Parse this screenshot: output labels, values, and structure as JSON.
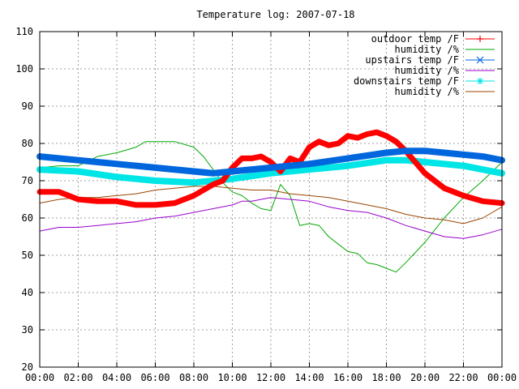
{
  "chart_data": {
    "type": "line",
    "title": "Temperature log: 2007-07-18",
    "xlabel": "",
    "ylabel": "",
    "ylim": [
      20,
      110
    ],
    "xlim": [
      0,
      24
    ],
    "grid": true,
    "legend_position": "top-right",
    "y_ticks": [
      "20",
      "30",
      "40",
      "50",
      "60",
      "70",
      "80",
      "90",
      "100",
      "110"
    ],
    "x_ticks": [
      "00:00",
      "02:00",
      "04:00",
      "06:00",
      "08:00",
      "10:00",
      "12:00",
      "14:00",
      "16:00",
      "18:00",
      "20:00",
      "22:00",
      "00:00"
    ],
    "series": [
      {
        "name": "outdoor temp /F",
        "color": "#ff0000",
        "marker": "plus",
        "x": [
          0,
          1,
          1.5,
          2,
          3,
          4,
          5,
          6,
          7,
          8,
          8.5,
          9,
          9.5,
          10,
          10.5,
          11,
          11.5,
          12,
          12.5,
          13,
          13.5,
          14,
          14.5,
          15,
          15.5,
          16,
          16.5,
          17,
          17.5,
          18,
          18.5,
          19,
          19.5,
          20,
          21,
          22,
          23,
          24
        ],
        "y": [
          67,
          67,
          66,
          65,
          64.5,
          64.5,
          63.5,
          63.5,
          64,
          66,
          67.5,
          69,
          70,
          73.5,
          76,
          76,
          76.5,
          75,
          72.5,
          76,
          75,
          79,
          80.5,
          79.5,
          80,
          82,
          81.5,
          82.5,
          83,
          82,
          80.5,
          78,
          75,
          72,
          68,
          66,
          64.5,
          64
        ]
      },
      {
        "name": "humidity /%",
        "color": "#00aa00",
        "marker": "none",
        "x": [
          0,
          1,
          2,
          3,
          4,
          5,
          5.5,
          6,
          7,
          8,
          8.5,
          9,
          9.5,
          10,
          10.5,
          11,
          11.5,
          12,
          12.5,
          13,
          13.5,
          14,
          14.5,
          15,
          15.5,
          16,
          16.5,
          17,
          17.5,
          18,
          18.5,
          19,
          20,
          21,
          22,
          23,
          24
        ],
        "y": [
          73.5,
          74,
          74,
          76.5,
          77.5,
          79,
          80.5,
          80.5,
          80.5,
          79,
          76.5,
          73,
          69.5,
          67,
          66,
          64,
          62.5,
          62,
          69,
          66,
          58,
          58.5,
          58,
          55,
          53,
          51,
          50.5,
          48,
          47.5,
          46.5,
          45.5,
          48,
          53.5,
          60,
          65.5,
          70,
          75
        ]
      },
      {
        "name": "upstairs temp /F",
        "color": "#0066dd",
        "marker": "cross",
        "x": [
          0,
          2,
          4,
          6,
          8,
          9,
          10,
          12,
          14,
          16,
          18,
          19,
          20,
          21,
          22,
          23,
          24
        ],
        "y": [
          76.5,
          75.5,
          74.5,
          73.5,
          72.5,
          72,
          72.5,
          73.5,
          74.5,
          76,
          77.5,
          78,
          78,
          77.5,
          77,
          76.5,
          75.5
        ]
      },
      {
        "name": "humidity /%",
        "color": "#9900cc",
        "marker": "none",
        "x": [
          0,
          1,
          2,
          3,
          4,
          5,
          6,
          7,
          8,
          9,
          10,
          10.5,
          11,
          12,
          13,
          14,
          15,
          16,
          17,
          18,
          19,
          20,
          21,
          22,
          23,
          24
        ],
        "y": [
          56.5,
          57.5,
          57.5,
          58,
          58.5,
          59,
          60,
          60.5,
          61.5,
          62.5,
          63.5,
          64.5,
          64.5,
          65.5,
          65,
          64.5,
          63,
          62,
          61.5,
          60,
          58,
          56.5,
          55,
          54.5,
          55.5,
          57
        ]
      },
      {
        "name": "downstairs temp /F",
        "color": "#00e5e5",
        "marker": "star",
        "x": [
          0,
          2,
          4,
          6,
          8,
          10,
          12,
          14,
          16,
          18,
          19,
          20,
          21,
          22,
          23,
          24
        ],
        "y": [
          73,
          72.5,
          71,
          70,
          69.5,
          70.5,
          72,
          73,
          74,
          75.5,
          75.5,
          75,
          74.5,
          74,
          73,
          72
        ]
      },
      {
        "name": "humidity /%",
        "color": "#994400",
        "marker": "none",
        "x": [
          0,
          1,
          2,
          3,
          4,
          5,
          6,
          7,
          8,
          9,
          10,
          11,
          12,
          13,
          14,
          15,
          16,
          17,
          18,
          19,
          20,
          21,
          22,
          23,
          24
        ],
        "y": [
          64,
          65,
          65.5,
          65.5,
          66,
          66.5,
          67.5,
          68,
          68.5,
          68.5,
          68,
          67.5,
          67.5,
          66.5,
          66,
          65.5,
          64.5,
          63.5,
          62.5,
          61,
          60,
          59.5,
          58.5,
          60,
          63
        ]
      }
    ]
  }
}
